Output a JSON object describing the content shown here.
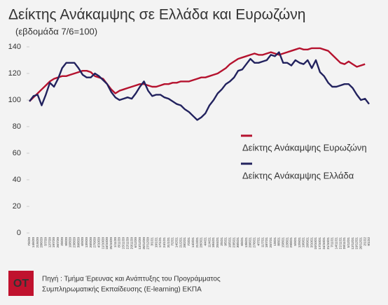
{
  "chart_data": {
    "type": "line",
    "title": "Δείκτης Ανάκαμψης σε Ελλάδα και Ευρωζώνη",
    "subtitle": "(εβδομάδα 7/6=100)",
    "x": [
      "7/6/20",
      "14/6/20",
      "21/6/20",
      "28/6/20",
      "5/7/20",
      "12/7/20",
      "19/7/20",
      "26/7/20",
      "2/8/20",
      "9/8/20",
      "16/8/20",
      "23/8/20",
      "30/8/20",
      "6/9/20",
      "13/9/20",
      "20/9/20",
      "27/9/20",
      "4/10/20",
      "11/10/20",
      "18/10/20",
      "25/10/20",
      "1/11/20",
      "8/11/20",
      "15/11/20",
      "22/11/20",
      "29/11/20",
      "6/12/20",
      "13/12/20",
      "20/12/20",
      "27/12/20",
      "3/1/21",
      "10/1/21",
      "17/1/21",
      "24/1/21",
      "31/1/21",
      "7/2/21",
      "14/2/21",
      "21/2/21",
      "28/2/21",
      "7/3/21",
      "14/3/21",
      "21/3/21",
      "28/3/21",
      "4/4/21",
      "11/4/21",
      "18/4/21",
      "25/4/21",
      "2/5/21",
      "9/5/21",
      "16/5/21",
      "23/5/21",
      "30/5/21",
      "6/6/21",
      "13/6/21",
      "20/6/21",
      "27/6/21",
      "4/7/21",
      "11/7/21",
      "18/7/21",
      "25/7/21",
      "1/8/21",
      "8/8/21",
      "15/8/21",
      "22/8/21",
      "29/8/21",
      "5/9/21",
      "12/9/21",
      "19/9/21",
      "26/9/21",
      "3/10/21",
      "10/10/21",
      "17/10/21",
      "24/10/21",
      "31/10/21",
      "7/11/21",
      "14/11/21",
      "21/11/21",
      "28/11/21",
      "5/12/21",
      "12/12/21",
      "19/12/21",
      "26/12/21",
      "2/1/22",
      "9/1/22"
    ],
    "series": [
      {
        "name": "Δείκτης Ανάκαμψης Ευρωζώνη",
        "color": "#b5122e",
        "values": [
          99,
          102,
          105,
          108,
          111,
          114,
          116,
          117,
          118,
          118,
          119,
          120,
          121,
          122,
          122,
          121,
          118,
          117,
          116,
          112,
          108,
          105,
          107,
          108,
          109,
          110,
          111,
          112,
          112,
          111,
          110,
          110,
          111,
          112,
          112,
          113,
          113,
          114,
          114,
          114,
          115,
          116,
          117,
          117,
          118,
          119,
          120,
          122,
          124,
          127,
          129,
          131,
          132,
          133,
          134,
          135,
          134,
          134,
          135,
          136,
          135,
          134,
          135,
          136,
          137,
          138,
          139,
          138,
          138,
          139,
          139,
          139,
          138,
          137,
          134,
          131,
          128,
          127,
          129,
          127,
          125,
          126,
          127,
          null
        ]
      },
      {
        "name": "Δείκτης Ανάκαμψης Ελλάδα",
        "color": "#22225e",
        "values": [
          99,
          103,
          104,
          96,
          104,
          113,
          110,
          116,
          124,
          128,
          128,
          128,
          124,
          119,
          117,
          117,
          120,
          118,
          115,
          112,
          106,
          102,
          100,
          101,
          102,
          101,
          105,
          110,
          114,
          107,
          103,
          104,
          104,
          102,
          101,
          99,
          97,
          96,
          93,
          91,
          88,
          85,
          87,
          90,
          96,
          100,
          105,
          108,
          112,
          114,
          117,
          122,
          123,
          127,
          131,
          128,
          128,
          129,
          130,
          134,
          133,
          136,
          128,
          128,
          126,
          130,
          128,
          127,
          130,
          124,
          130,
          121,
          118,
          113,
          110,
          110,
          111,
          112,
          112,
          109,
          104,
          100,
          101,
          97
        ]
      }
    ],
    "ylim": [
      0,
      140
    ],
    "yticks": [
      0,
      20,
      40,
      60,
      80,
      100,
      120,
      140
    ],
    "grid": false,
    "source": [
      "Πηγή : Τμήμα Έρευνας και Ανάπτυξης του Προγράμματος",
      "Συμπληρωματικής Εκπαίδευσης (E-learning) ΕΚΠΑ"
    ],
    "logo": "OT"
  }
}
